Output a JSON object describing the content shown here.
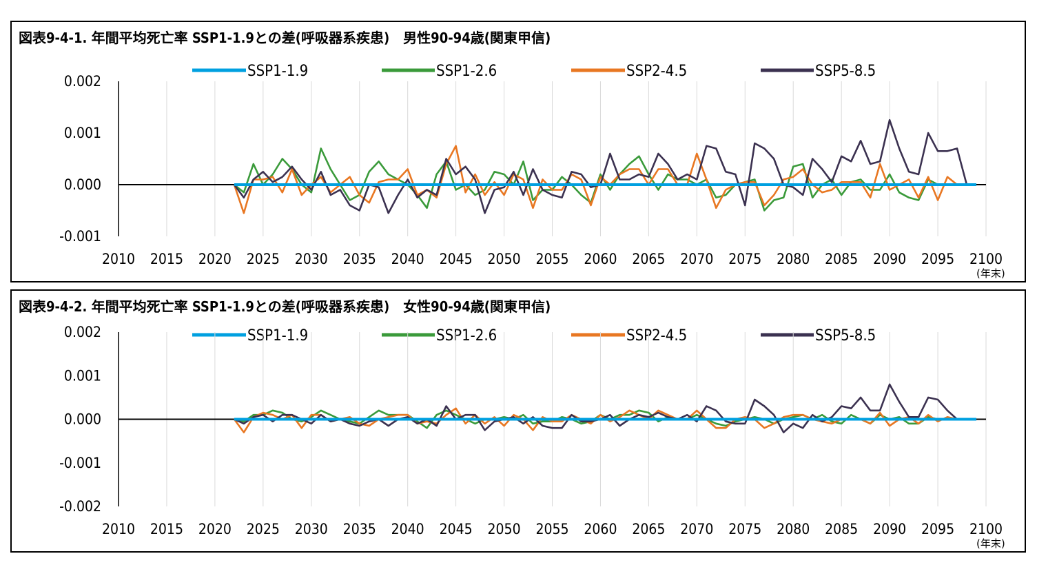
{
  "chart_data": [
    {
      "type": "line",
      "title": "図表9-4-1. 年間平均死亡率 SSP1-1.9との差(呼吸器系疾患)　男性90-94歳(関東甲信)",
      "x_unit": "(年末)",
      "xlim": [
        2010,
        2100
      ],
      "ylim": [
        -0.001,
        0.002
      ],
      "x_ticks": [
        "2010",
        "2015",
        "2020",
        "2025",
        "2030",
        "2035",
        "2040",
        "2045",
        "2050",
        "2055",
        "2060",
        "2065",
        "2070",
        "2075",
        "2080",
        "2085",
        "2090",
        "2095",
        "2100"
      ],
      "y_ticks": [
        "0.002",
        "0.001",
        "0.000",
        "-0.001"
      ],
      "y_tick_values": [
        0.002,
        0.001,
        0,
        -0.001
      ],
      "grid": "vertical",
      "legend_position": "top",
      "baseline": {
        "x_start": 2010,
        "x_end": 2022
      },
      "x_start": 2022,
      "series": [
        {
          "name": "SSP1-1.9",
          "color": "#00A0E0",
          "values": [
            0,
            0,
            0,
            0,
            0,
            0,
            0,
            0,
            0,
            0,
            0,
            0,
            0,
            0,
            0,
            0,
            0,
            0,
            0,
            0,
            0,
            0,
            0,
            0,
            0,
            0,
            0,
            0,
            0,
            0,
            0,
            0,
            0,
            0,
            0,
            0,
            0,
            0,
            0,
            0,
            0,
            0,
            0,
            0,
            0,
            0,
            0,
            0,
            0,
            0,
            0,
            0,
            0,
            0,
            0,
            0,
            0,
            0,
            0,
            0,
            0,
            0,
            0,
            0,
            0,
            0,
            0,
            0,
            0,
            0,
            0,
            0,
            0,
            0,
            0,
            0,
            0,
            0
          ]
        },
        {
          "name": "SSP1-2.6",
          "color": "#3A9A3A",
          "values": [
            0,
            -0.00015,
            0.0004,
            0,
            0.0002,
            0.0005,
            0.0003,
            0,
            -0.00015,
            0.0007,
            0.0003,
            0,
            -0.0003,
            -0.0002,
            0.00025,
            0.00045,
            0.0002,
            0.0001,
            0,
            -0.0002,
            -0.00045,
            0.0002,
            0.00045,
            -0.0001,
            0,
            -0.0002,
            -0.0001,
            0.00025,
            0.0002,
            0,
            0.00045,
            -0.0003,
            -0.0001,
            -0.0001,
            0.00015,
            0,
            -0.0002,
            -0.00035,
            0.0002,
            -0.0001,
            0.0002,
            0.0004,
            0.00055,
            0.0002,
            -0.0001,
            0.0002,
            0.0001,
            0.0001,
            0,
            0.0001,
            -0.00025,
            -0.0002,
            0,
            5e-05,
            0.0001,
            -0.0005,
            -0.0003,
            -0.00025,
            0.00035,
            0.0004,
            -0.00025,
            0,
            0.0001,
            -0.0002,
            5e-05,
            0.0001,
            -0.0001,
            -0.0001,
            0.0002,
            -0.00015,
            -0.00025,
            -0.0003,
            0.0001,
            0,
            0,
            0,
            0,
            0
          ]
        },
        {
          "name": "SSP2-4.5",
          "color": "#E87722",
          "values": [
            0,
            -0.00055,
            0.0001,
            0.0001,
            0.00015,
            -0.00015,
            0.0003,
            -0.0002,
            0,
            0.00015,
            -0.00015,
            0,
            0.00015,
            -0.0002,
            -0.00035,
            5e-05,
            0.0001,
            0.0001,
            0.0003,
            -0.0002,
            -0.0001,
            -0.00025,
            0.0004,
            0.00075,
            -0.00015,
            0.0002,
            -0.0002,
            5e-05,
            -0.0002,
            0.0002,
            0.0001,
            -0.00045,
            0.0001,
            -0.0001,
            -0.0001,
            0.0002,
            0.0001,
            -0.0004,
            0.00015,
            0,
            0.0002,
            0.0003,
            0.0003,
            0,
            0.0003,
            0.0003,
            0,
            0,
            0.0006,
            0.0001,
            -0.00045,
            -0.0001,
            0,
            5e-05,
            5e-05,
            -0.0004,
            -0.0002,
            0.0001,
            0.00015,
            0.0003,
            0,
            -0.00015,
            -0.0001,
            5e-05,
            5e-05,
            5e-05,
            -0.00025,
            0.0004,
            -0.0001,
            0,
            0.0001,
            -0.00025,
            0.00015,
            -0.0003,
            0.00015,
            0,
            0,
            0
          ]
        },
        {
          "name": "SSP5-8.5",
          "color": "#3B3150",
          "values": [
            0,
            -0.00025,
            0.0001,
            0.00025,
            5e-05,
            0.00015,
            0.00035,
            0.0001,
            -0.0001,
            0.00025,
            -0.0002,
            -0.0001,
            -0.0004,
            -0.0005,
            0,
            -5e-05,
            -0.00055,
            -0.0002,
            0.0001,
            -0.00025,
            -0.0001,
            -0.0002,
            0.0005,
            0.0002,
            0.00035,
            0.0001,
            -0.00055,
            -0.0001,
            -5e-05,
            0.00025,
            -0.0002,
            0.0003,
            -0.0001,
            -0.0002,
            -0.00025,
            0.00025,
            0.0002,
            -5e-05,
            0,
            0.0006,
            0.0001,
            0.0001,
            0.0002,
            0.00015,
            0.0006,
            0.0004,
            0.0001,
            0.0002,
            0.0001,
            0.00075,
            0.0007,
            0.00025,
            0.0002,
            -0.0004,
            0.0008,
            0.0007,
            0.0005,
            0,
            -5e-05,
            -0.0002,
            0.0005,
            0.0003,
            5e-05,
            0.00055,
            0.00045,
            0.00085,
            0.0004,
            0.00045,
            0.00125,
            0.0007,
            0.00025,
            0.0002,
            0.001,
            0.00065,
            0.00065,
            0.0007,
            0,
            0
          ]
        }
      ]
    },
    {
      "type": "line",
      "title": "図表9-4-2. 年間平均死亡率 SSP1-1.9との差(呼吸器系疾患)　女性90-94歳(関東甲信)",
      "x_unit": "(年末)",
      "xlim": [
        2010,
        2100
      ],
      "ylim": [
        -0.002,
        0.002
      ],
      "x_ticks": [
        "2010",
        "2015",
        "2020",
        "2025",
        "2030",
        "2035",
        "2040",
        "2045",
        "2050",
        "2055",
        "2060",
        "2065",
        "2070",
        "2075",
        "2080",
        "2085",
        "2090",
        "2095",
        "2100"
      ],
      "y_ticks": [
        "0.002",
        "0.001",
        "0.000",
        "-0.001",
        "-0.002"
      ],
      "y_tick_values": [
        0.002,
        0.001,
        0,
        -0.001,
        -0.002
      ],
      "grid": "vertical",
      "legend_position": "top",
      "baseline": {
        "x_start": 2010,
        "x_end": 2022
      },
      "x_start": 2022,
      "series": [
        {
          "name": "SSP1-1.9",
          "color": "#00A0E0",
          "values": [
            0,
            0,
            0,
            0,
            0,
            0,
            0,
            0,
            0,
            0,
            0,
            0,
            0,
            0,
            0,
            0,
            0,
            0,
            0,
            0,
            0,
            0,
            0,
            0,
            0,
            0,
            0,
            0,
            0,
            0,
            0,
            0,
            0,
            0,
            0,
            0,
            0,
            0,
            0,
            0,
            0,
            0,
            0,
            0,
            0,
            0,
            0,
            0,
            0,
            0,
            0,
            0,
            0,
            0,
            0,
            0,
            0,
            0,
            0,
            0,
            0,
            0,
            0,
            0,
            0,
            0,
            0,
            0,
            0,
            0,
            0,
            0,
            0,
            0,
            0,
            0,
            0,
            0
          ]
        },
        {
          "name": "SSP1-2.6",
          "color": "#3A9A3A",
          "values": [
            0,
            -5e-05,
            0.0001,
            0.0001,
            0.0002,
            0.00015,
            0,
            -5e-05,
            5e-05,
            0.0002,
            0.0001,
            0,
            -5e-05,
            -0.0001,
            5e-05,
            0.0002,
            0.0001,
            0.0001,
            0.0001,
            -5e-05,
            -0.0002,
            0.0001,
            0.0002,
            0.0001,
            0,
            -0.0001,
            0,
            0,
            5e-05,
            0,
            0.0001,
            -0.0001,
            -5e-05,
            -5e-05,
            5e-05,
            0,
            -0.0001,
            -5e-05,
            0.0001,
            0,
            0.0001,
            0.0001,
            0.0002,
            0.00015,
            -5e-05,
            5e-05,
            0,
            0,
            0.0001,
            0,
            -0.0001,
            -0.00015,
            -5e-05,
            0,
            5e-05,
            0,
            -0.0001,
            0,
            5e-05,
            0.0001,
            0,
            0.0001,
            -5e-05,
            -0.0001,
            0.0001,
            0,
            -0.0001,
            0.0001,
            0,
            5e-05,
            -0.0001,
            -0.0001,
            5e-05,
            0,
            0,
            0,
            0,
            0
          ]
        },
        {
          "name": "SSP2-4.5",
          "color": "#E87722",
          "values": [
            0,
            -0.0003,
            5e-05,
            0.00015,
            0.0001,
            0,
            0.0001,
            -0.0002,
            0.0001,
            0.0001,
            -5e-05,
            0,
            5e-05,
            -0.0001,
            -0.00015,
            0,
            5e-05,
            0.0001,
            0.0001,
            -0.0001,
            -5e-05,
            -0.0001,
            0.0001,
            0.00025,
            -0.0001,
            0.0001,
            -0.0001,
            5e-05,
            -0.00015,
            0.0001,
            0,
            -0.00025,
            5e-05,
            -5e-05,
            -5e-05,
            0.0001,
            0,
            -0.0001,
            0.0001,
            -5e-05,
            5e-05,
            0.0002,
            0.0001,
            0,
            0.0002,
            0.0001,
            0,
            0,
            0.0002,
            0,
            -0.0002,
            -0.0002,
            0,
            5e-05,
            0,
            -0.0002,
            -0.0001,
            5e-05,
            0.0001,
            0.0001,
            0,
            -5e-05,
            -0.0001,
            0,
            0,
            0,
            -0.0001,
            0.00015,
            -0.00015,
            0,
            5e-05,
            -0.0001,
            0.0001,
            -5e-05,
            5e-05,
            0,
            0,
            0
          ]
        },
        {
          "name": "SSP5-8.5",
          "color": "#3B3150",
          "values": [
            0,
            -0.0001,
            5e-05,
            0.0001,
            -5e-05,
            0.0001,
            0.0001,
            0,
            -0.0001,
            0.0001,
            -5e-05,
            0,
            -0.0001,
            -0.00015,
            -5e-05,
            0,
            -0.00015,
            0,
            5e-05,
            -0.0001,
            0,
            -0.00015,
            0.0003,
            0,
            0.0001,
            0.0001,
            -0.00025,
            -5e-05,
            0,
            5e-05,
            -0.0001,
            5e-05,
            -0.00015,
            -0.0002,
            -0.0002,
            0.0001,
            -5e-05,
            -5e-05,
            0,
            0.0001,
            -0.00015,
            0,
            0.0001,
            5e-05,
            0.00015,
            5e-05,
            0,
            0.0001,
            -5e-05,
            0.0003,
            0.0002,
            -5e-05,
            -0.0001,
            -0.0001,
            0.00045,
            0.0003,
            0.0001,
            -0.0003,
            -0.0001,
            -0.0002,
            0.0001,
            -5e-05,
            5e-05,
            0.0003,
            0.00025,
            0.0005,
            0.0002,
            0.0002,
            0.0008,
            0.0004,
            5e-05,
            5e-05,
            0.0005,
            0.00045,
            0.0002,
            0,
            0,
            0
          ]
        }
      ]
    }
  ]
}
